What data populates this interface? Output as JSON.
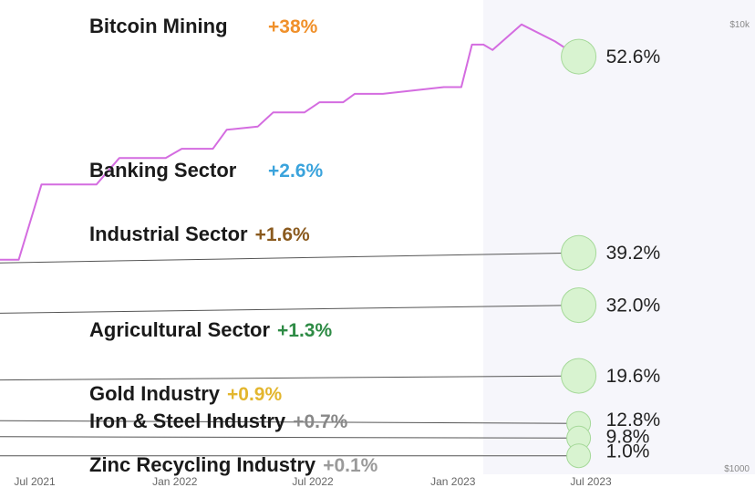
{
  "chart_data": {
    "type": "line",
    "x_ticks": [
      "Jul 2021",
      "Jan 2022",
      "Jul 2022",
      "Jan 2023",
      "Jul 2023"
    ],
    "y_ticks": [
      "$10k",
      "$1000"
    ],
    "y_scale": "log",
    "series": [
      {
        "name": "Bitcoin Mining",
        "change": "+38%",
        "end_value": "52.6%",
        "line_color": "#d46ce0",
        "change_color": "#f0902a",
        "points": [
          [
            "2021-02-01",
            3020
          ],
          [
            "2021-06-10",
            3020
          ],
          [
            "2021-07-10",
            4450
          ],
          [
            "2021-09-20",
            4450
          ],
          [
            "2021-10-20",
            5100
          ],
          [
            "2021-12-20",
            5100
          ],
          [
            "2022-01-10",
            5350
          ],
          [
            "2022-02-20",
            5350
          ],
          [
            "2022-03-10",
            5900
          ],
          [
            "2022-04-20",
            6000
          ],
          [
            "2022-05-10",
            6450
          ],
          [
            "2022-06-20",
            6450
          ],
          [
            "2022-07-10",
            6800
          ],
          [
            "2022-08-10",
            6800
          ],
          [
            "2022-08-25",
            7100
          ],
          [
            "2022-10-01",
            7100
          ],
          [
            "2022-12-20",
            7350
          ],
          [
            "2023-01-12",
            7350
          ],
          [
            "2023-01-26",
            9150
          ],
          [
            "2023-02-10",
            9150
          ],
          [
            "2023-02-22",
            8900
          ],
          [
            "2023-04-01",
            10150
          ],
          [
            "2023-05-15",
            9300
          ],
          [
            "2023-06-15",
            8600
          ]
        ]
      },
      {
        "name": "Banking Sector",
        "change": "+2.6%",
        "end_value": "39.2%",
        "line_color": "#555555",
        "change_color": "#3aa3dc",
        "points": [
          [
            "2021-02-01",
            2950
          ],
          [
            "2023-06-15",
            3130
          ]
        ]
      },
      {
        "name": "Industrial Sector",
        "change": "+1.6%",
        "end_value": "32.0%",
        "line_color": "#555555",
        "change_color": "#8a5a1e",
        "points": [
          [
            "2021-02-01",
            2280
          ],
          [
            "2023-06-15",
            2390
          ]
        ]
      },
      {
        "name": "Agricultural Sector",
        "change": "+1.3%",
        "end_value": "19.6%",
        "line_color": "#555555",
        "change_color": "#2e8b45",
        "points": [
          [
            "2021-02-01",
            1620
          ],
          [
            "2023-06-15",
            1660
          ]
        ]
      },
      {
        "name": "Gold Industry",
        "change": "+0.9%",
        "end_value": "12.8%",
        "line_color": "#555555",
        "change_color": "#e3b62e",
        "points": [
          [
            "2021-02-01",
            1320
          ],
          [
            "2023-06-15",
            1300
          ]
        ]
      },
      {
        "name": "Iron & Steel Industry",
        "change": "+0.7%",
        "end_value": "9.8%",
        "line_color": "#555555",
        "change_color": "#888888",
        "points": [
          [
            "2021-02-01",
            1215
          ],
          [
            "2023-06-15",
            1205
          ]
        ]
      },
      {
        "name": "Zinc Recycling Industry",
        "change": "+0.1%",
        "end_value": "1.0%",
        "line_color": "#555555",
        "change_color": "#9a9a9a",
        "points": [
          [
            "2021-02-01",
            1100
          ],
          [
            "2023-06-15",
            1100
          ]
        ]
      }
    ],
    "colors": {
      "end_marker_fill": "#d8f3d0",
      "end_marker_stroke": "#a6d99a",
      "plot_shade": "#f6f6fb"
    }
  }
}
